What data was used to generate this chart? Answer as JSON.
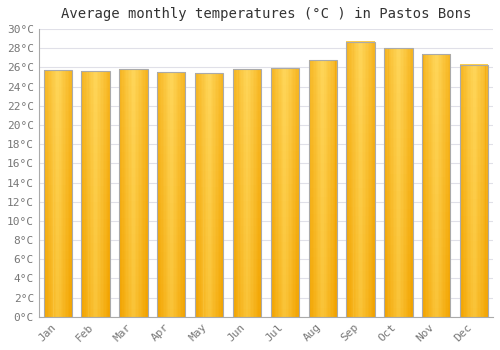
{
  "title": "Average monthly temperatures (°C ) in Pastos Bons",
  "months": [
    "Jan",
    "Feb",
    "Mar",
    "Apr",
    "May",
    "Jun",
    "Jul",
    "Aug",
    "Sep",
    "Oct",
    "Nov",
    "Dec"
  ],
  "values": [
    25.7,
    25.6,
    25.8,
    25.5,
    25.4,
    25.8,
    25.9,
    26.8,
    28.7,
    28.0,
    27.4,
    26.3
  ],
  "bar_color_center": "#FFD04A",
  "bar_color_edge": "#F5A800",
  "bar_border_color": "#AAAAAA",
  "background_color": "#FFFFFF",
  "plot_bg_color": "#FFFFFF",
  "grid_color": "#E0E0E8",
  "ylim": [
    0,
    30
  ],
  "ytick_step": 2,
  "title_fontsize": 10,
  "tick_fontsize": 8,
  "bar_width": 0.75
}
